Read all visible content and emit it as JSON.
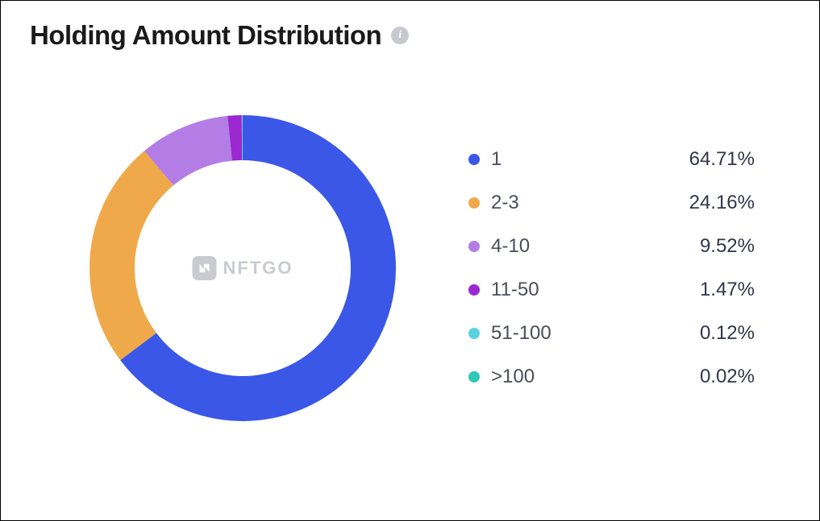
{
  "title": "Holding Amount Distribution",
  "info_icon_name": "info-icon",
  "watermark": "NFTGO",
  "chart": {
    "type": "pie",
    "donut_outer_radius": 190,
    "stroke_width": 56,
    "start_angle_deg": 0,
    "background_color": "#ffffff",
    "series": [
      {
        "label": "1",
        "value": 64.71,
        "color": "#3a57e8"
      },
      {
        "label": "2-3",
        "value": 24.16,
        "color": "#f0a94a"
      },
      {
        "label": "4-10",
        "value": 9.52,
        "color": "#b47de6"
      },
      {
        "label": "11-50",
        "value": 1.47,
        "color": "#9b28d1"
      },
      {
        "label": "51-100",
        "value": 0.12,
        "color": "#5bd1e0"
      },
      {
        "label": ">100",
        "value": 0.02,
        "color": "#2fc7b5"
      }
    ],
    "legend_label_color": "#4a4d5a",
    "legend_value_color": "#32354a",
    "legend_fontsize": 24,
    "title_fontsize": 33,
    "title_color": "#1a1a1a",
    "watermark_color": "#c9cbd1"
  }
}
